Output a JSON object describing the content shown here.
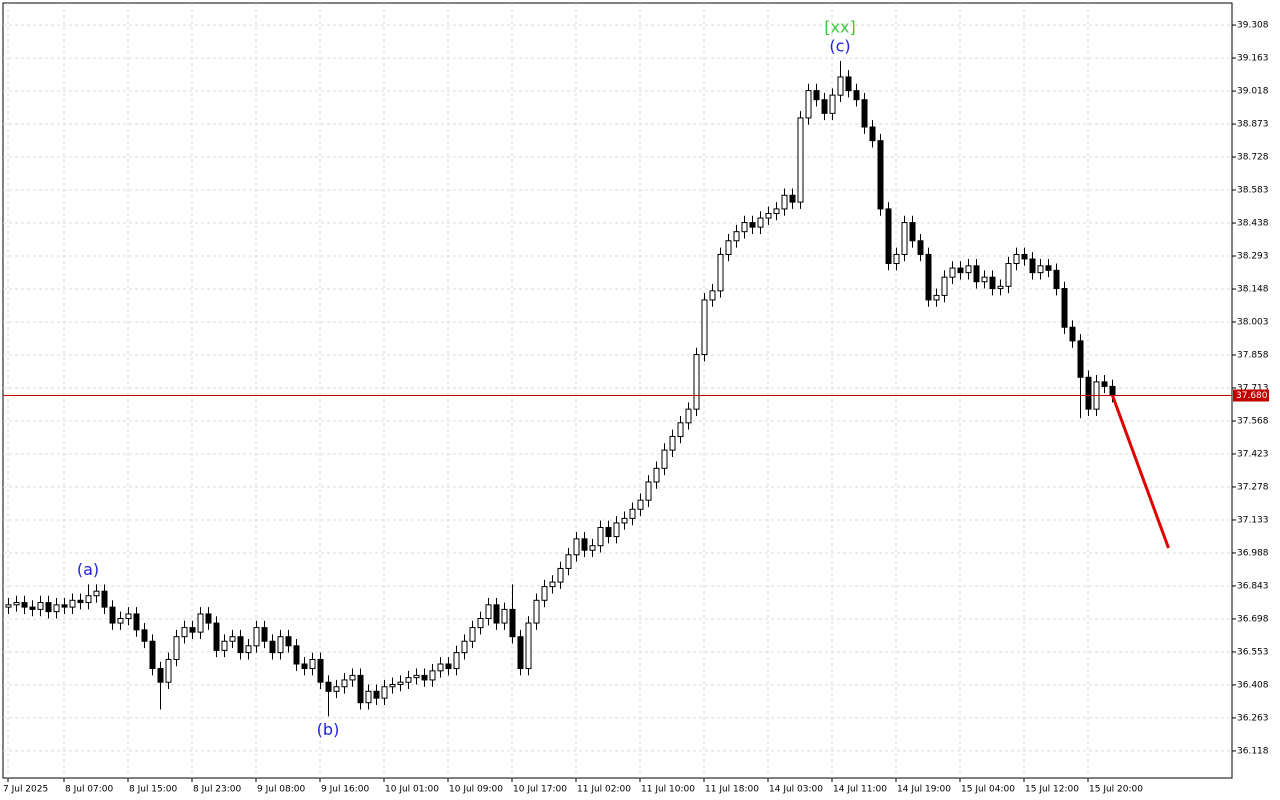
{
  "chart_data": {
    "type": "candlestick",
    "categories": [
      "7 Jul 2025",
      null,
      null,
      null,
      null,
      null,
      null,
      "8 Jul 07:00",
      null,
      null,
      null,
      null,
      null,
      null,
      null,
      "8 Jul 15:00",
      null,
      null,
      null,
      null,
      null,
      null,
      null,
      "8 Jul 23:00",
      null,
      null,
      null,
      null,
      null,
      null,
      null,
      "9 Jul 08:00",
      null,
      null,
      null,
      null,
      null,
      null,
      null,
      "9 Jul 16:00",
      null,
      null,
      null,
      null,
      null,
      null,
      null,
      "10 Jul 01:00",
      null,
      null,
      null,
      null,
      null,
      null,
      null,
      "10 Jul 09:00",
      null,
      null,
      null,
      null,
      null,
      null,
      null,
      "10 Jul 17:00",
      null,
      null,
      null,
      null,
      null,
      null,
      null,
      "11 Jul 02:00",
      null,
      null,
      null,
      null,
      null,
      null,
      null,
      "11 Jul 10:00",
      null,
      null,
      null,
      null,
      null,
      null,
      null,
      "11 Jul 18:00",
      null,
      null,
      null,
      null,
      null,
      null,
      null,
      "14 Jul 03:00",
      null,
      null,
      null,
      null,
      null,
      null,
      null,
      "14 Jul 11:00",
      null,
      null,
      null,
      null,
      null,
      null,
      null,
      "14 Jul 19:00",
      null,
      null,
      null,
      null,
      null,
      null,
      null,
      "15 Jul 04:00",
      null,
      null,
      null,
      null,
      null,
      null,
      null,
      "15 Jul 12:00",
      null,
      null,
      null,
      null,
      null,
      null,
      null,
      "15 Jul 20:00",
      null,
      null,
      null
    ],
    "open": [
      36.75,
      36.76,
      36.77,
      36.75,
      36.74,
      36.77,
      36.73,
      36.76,
      36.75,
      36.78,
      36.77,
      36.8,
      36.82,
      36.75,
      36.68,
      36.7,
      36.72,
      36.65,
      36.6,
      36.48,
      36.42,
      36.52,
      36.62,
      36.66,
      36.64,
      36.72,
      36.68,
      36.56,
      36.6,
      36.62,
      36.55,
      36.58,
      36.66,
      36.6,
      36.55,
      36.62,
      36.58,
      36.5,
      36.48,
      36.52,
      36.42,
      36.38,
      36.4,
      36.43,
      36.45,
      36.33,
      36.38,
      36.35,
      36.4,
      36.41,
      36.42,
      36.44,
      36.45,
      36.43,
      36.47,
      36.5,
      36.48,
      36.55,
      36.6,
      36.66,
      36.7,
      36.76,
      36.68,
      36.74,
      36.62,
      36.48,
      36.68,
      36.78,
      36.84,
      36.86,
      36.92,
      36.98,
      37.05,
      37.0,
      37.02,
      37.1,
      37.06,
      37.12,
      37.14,
      37.18,
      37.22,
      37.3,
      37.36,
      37.44,
      37.5,
      37.56,
      37.62,
      37.86,
      38.1,
      38.14,
      38.3,
      38.36,
      38.4,
      38.44,
      38.42,
      38.46,
      38.48,
      38.5,
      38.56,
      38.53,
      38.9,
      39.02,
      38.98,
      38.92,
      39.0,
      39.08,
      39.02,
      38.98,
      38.86,
      38.8,
      38.5,
      38.26,
      38.3,
      38.44,
      38.36,
      38.3,
      38.1,
      38.12,
      38.2,
      38.24,
      38.22,
      38.25,
      38.18,
      38.2,
      38.15,
      38.16,
      38.26,
      38.3,
      38.28,
      38.22,
      38.25,
      38.23,
      38.15,
      37.98,
      37.92,
      37.76,
      37.62,
      37.74,
      37.72
    ],
    "high": [
      36.79,
      36.8,
      36.8,
      36.78,
      36.8,
      36.8,
      36.79,
      36.79,
      36.81,
      36.81,
      36.85,
      36.85,
      36.85,
      36.78,
      36.73,
      36.75,
      36.75,
      36.68,
      36.63,
      36.51,
      36.55,
      36.65,
      36.69,
      36.69,
      36.75,
      36.75,
      36.71,
      36.63,
      36.65,
      36.65,
      36.61,
      36.69,
      36.69,
      36.63,
      36.65,
      36.65,
      36.61,
      36.53,
      36.55,
      36.55,
      36.45,
      36.43,
      36.46,
      36.48,
      36.48,
      36.41,
      36.41,
      36.43,
      36.44,
      36.45,
      36.47,
      36.48,
      36.48,
      36.5,
      36.53,
      36.53,
      36.58,
      36.63,
      36.69,
      36.73,
      36.79,
      36.79,
      36.77,
      36.85,
      36.65,
      36.71,
      36.81,
      36.87,
      36.89,
      36.95,
      37.01,
      37.08,
      37.08,
      37.05,
      37.13,
      37.13,
      37.15,
      37.17,
      37.21,
      37.25,
      37.33,
      37.39,
      37.47,
      37.53,
      37.59,
      37.65,
      37.89,
      38.13,
      38.17,
      38.33,
      38.39,
      38.43,
      38.47,
      38.47,
      38.49,
      38.51,
      38.53,
      38.59,
      38.59,
      38.93,
      39.05,
      39.05,
      39.01,
      39.03,
      39.15,
      39.11,
      39.05,
      39.01,
      38.89,
      38.83,
      38.53,
      38.33,
      38.47,
      38.47,
      38.39,
      38.33,
      38.15,
      38.23,
      38.27,
      38.27,
      38.28,
      38.28,
      38.23,
      38.23,
      38.19,
      38.29,
      38.33,
      38.33,
      38.31,
      38.28,
      38.28,
      38.26,
      38.18,
      38.01,
      37.95,
      37.79,
      37.77,
      37.77,
      37.75
    ],
    "low": [
      36.72,
      36.73,
      36.72,
      36.71,
      36.71,
      36.7,
      36.7,
      36.72,
      36.72,
      36.74,
      36.74,
      36.77,
      36.72,
      36.65,
      36.65,
      36.67,
      36.62,
      36.57,
      36.45,
      36.3,
      36.39,
      36.49,
      36.59,
      36.61,
      36.61,
      36.65,
      36.53,
      36.53,
      36.57,
      36.52,
      36.52,
      36.55,
      36.57,
      36.52,
      36.52,
      36.55,
      36.47,
      36.45,
      36.45,
      36.39,
      36.27,
      36.35,
      36.37,
      36.4,
      36.3,
      36.3,
      36.32,
      36.32,
      36.37,
      36.38,
      36.39,
      36.41,
      36.4,
      36.4,
      36.44,
      36.45,
      36.45,
      36.52,
      36.57,
      36.63,
      36.67,
      36.65,
      36.65,
      36.59,
      36.45,
      36.45,
      36.65,
      36.75,
      36.81,
      36.83,
      36.89,
      36.95,
      36.97,
      36.97,
      36.99,
      37.03,
      37.03,
      37.09,
      37.11,
      37.15,
      37.19,
      37.27,
      37.33,
      37.41,
      37.47,
      37.53,
      37.59,
      37.83,
      38.07,
      38.11,
      38.27,
      38.33,
      38.37,
      38.39,
      38.39,
      38.43,
      38.45,
      38.47,
      38.5,
      38.5,
      38.87,
      38.95,
      38.89,
      38.89,
      38.97,
      38.99,
      38.95,
      38.83,
      38.77,
      38.47,
      38.23,
      38.23,
      38.27,
      38.33,
      38.27,
      38.07,
      38.07,
      38.09,
      38.17,
      38.19,
      38.19,
      38.15,
      38.15,
      38.12,
      38.12,
      38.13,
      38.23,
      38.25,
      38.19,
      38.19,
      38.2,
      38.12,
      37.95,
      37.89,
      37.58,
      37.59,
      37.59,
      37.69,
      37.65
    ],
    "close": [
      36.76,
      36.77,
      36.75,
      36.74,
      36.77,
      36.73,
      36.76,
      36.75,
      36.78,
      36.77,
      36.8,
      36.82,
      36.75,
      36.68,
      36.7,
      36.72,
      36.65,
      36.6,
      36.48,
      36.42,
      36.52,
      36.62,
      36.66,
      36.64,
      36.72,
      36.68,
      36.56,
      36.6,
      36.62,
      36.55,
      36.58,
      36.66,
      36.6,
      36.55,
      36.62,
      36.58,
      36.5,
      36.48,
      36.52,
      36.42,
      36.38,
      36.4,
      36.43,
      36.45,
      36.33,
      36.38,
      36.35,
      36.4,
      36.41,
      36.42,
      36.44,
      36.45,
      36.43,
      36.47,
      36.5,
      36.48,
      36.55,
      36.6,
      36.66,
      36.7,
      36.76,
      36.68,
      36.74,
      36.62,
      36.48,
      36.68,
      36.78,
      36.84,
      36.86,
      36.92,
      36.98,
      37.05,
      37.0,
      37.02,
      37.1,
      37.06,
      37.12,
      37.14,
      37.18,
      37.22,
      37.3,
      37.36,
      37.44,
      37.5,
      37.56,
      37.62,
      37.86,
      38.1,
      38.14,
      38.3,
      38.36,
      38.4,
      38.44,
      38.42,
      38.46,
      38.48,
      38.5,
      38.56,
      38.53,
      38.9,
      39.02,
      38.98,
      38.92,
      39.0,
      39.08,
      39.02,
      38.98,
      38.86,
      38.8,
      38.5,
      38.26,
      38.3,
      38.44,
      38.36,
      38.3,
      38.1,
      38.12,
      38.2,
      38.24,
      38.22,
      38.25,
      38.18,
      38.2,
      38.15,
      38.16,
      38.26,
      38.3,
      38.28,
      38.22,
      38.25,
      38.23,
      38.15,
      37.98,
      37.92,
      37.76,
      37.62,
      37.74,
      37.72,
      37.68
    ],
    "up_color": "#ffffff",
    "down_color": "#000000",
    "ylim": [
      35.999,
      39.405
    ],
    "yticks": [
      39.308,
      39.163,
      39.018,
      38.873,
      38.728,
      38.583,
      38.438,
      38.293,
      38.148,
      38.003,
      37.858,
      37.713,
      37.568,
      37.423,
      37.278,
      37.133,
      36.988,
      36.843,
      36.698,
      36.553,
      36.408,
      36.263,
      36.118
    ],
    "grid": true,
    "price_line": {
      "value": 37.68,
      "label": "37.680",
      "color": "#c00000"
    },
    "forecast": {
      "x": [
        138,
        145
      ],
      "values": [
        37.68,
        37.01
      ],
      "color": "#e00000"
    },
    "annotations": [
      {
        "text": "(a)",
        "candle": 10,
        "side": "above",
        "color": "#2020e0"
      },
      {
        "text": "(b)",
        "candle": 40,
        "side": "below",
        "color": "#2020e0"
      },
      {
        "text": "(c)",
        "candle": 104,
        "side": "above",
        "color": "#2020e0"
      },
      {
        "text": "[xx]",
        "candle": 104,
        "side": "above",
        "color": "#3cc83c"
      }
    ]
  }
}
